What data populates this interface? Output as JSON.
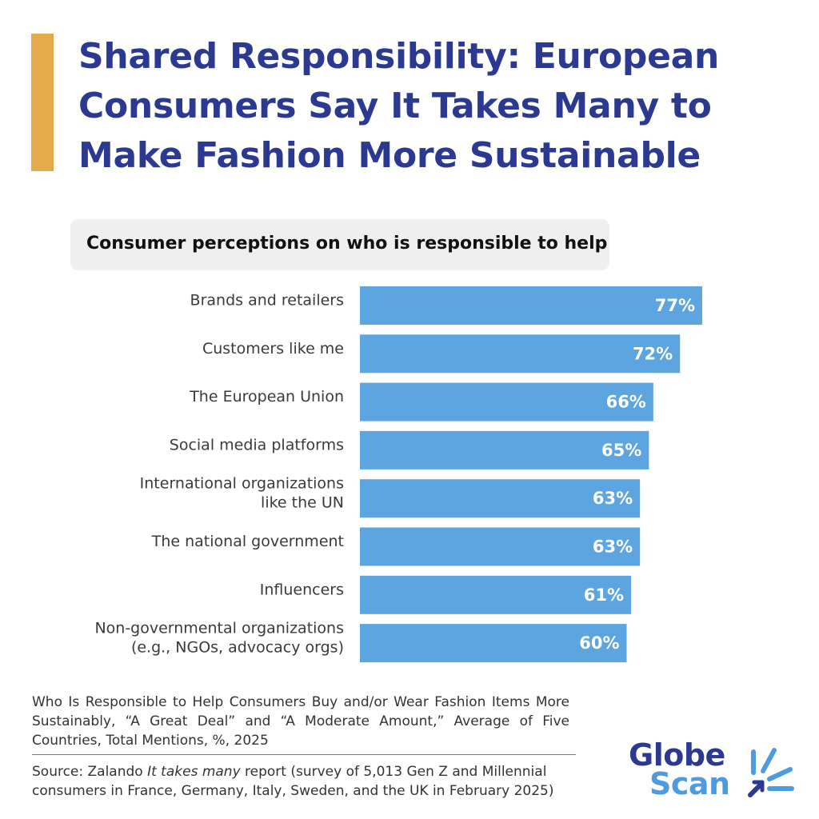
{
  "header": {
    "title": "Shared Responsibility: European Consumers Say It Takes Many to Make Fashion More Sustainable",
    "subtitle": "Consumer perceptions on who is responsible to help"
  },
  "chart_data": {
    "type": "bar",
    "orientation": "horizontal",
    "categories": [
      [
        "Brands and retailers"
      ],
      [
        "Customers like me"
      ],
      [
        "The European Union"
      ],
      [
        "Social media platforms"
      ],
      [
        "International organizations",
        "like the UN"
      ],
      [
        "The national government"
      ],
      [
        "Influencers"
      ],
      [
        "Non-governmental organizations",
        "(e.g., NGOs, advocacy orgs)"
      ]
    ],
    "values": [
      77,
      72,
      66,
      65,
      63,
      63,
      61,
      60
    ],
    "value_labels": [
      "77%",
      "72%",
      "66%",
      "65%",
      "63%",
      "63%",
      "61%",
      "60%"
    ],
    "bar_color": "#5DA5E0",
    "grid": false,
    "legend": "none"
  },
  "footer": {
    "note": "Who Is Responsible to Help Consumers Buy and/or Wear Fashion Items More Sustainably, “A Great Deal” and “A Moderate Amount,” Average of Five Countries, Total Mentions, %, 2025",
    "source_prefix": "Source: Zalando ",
    "source_italic": "It takes many",
    "source_suffix": " report (survey of 5,013 Gen Z and Millennial consumers in France, Germany, Italy, Sweden, and the UK in February 2025)"
  },
  "logo": {
    "line1": "Globe",
    "line2": "Scan"
  },
  "colors": {
    "title": "#2B3990",
    "accent": "#E3A94A",
    "bar": "#5DA5E0",
    "logo_blue": "#4E9BE0"
  }
}
